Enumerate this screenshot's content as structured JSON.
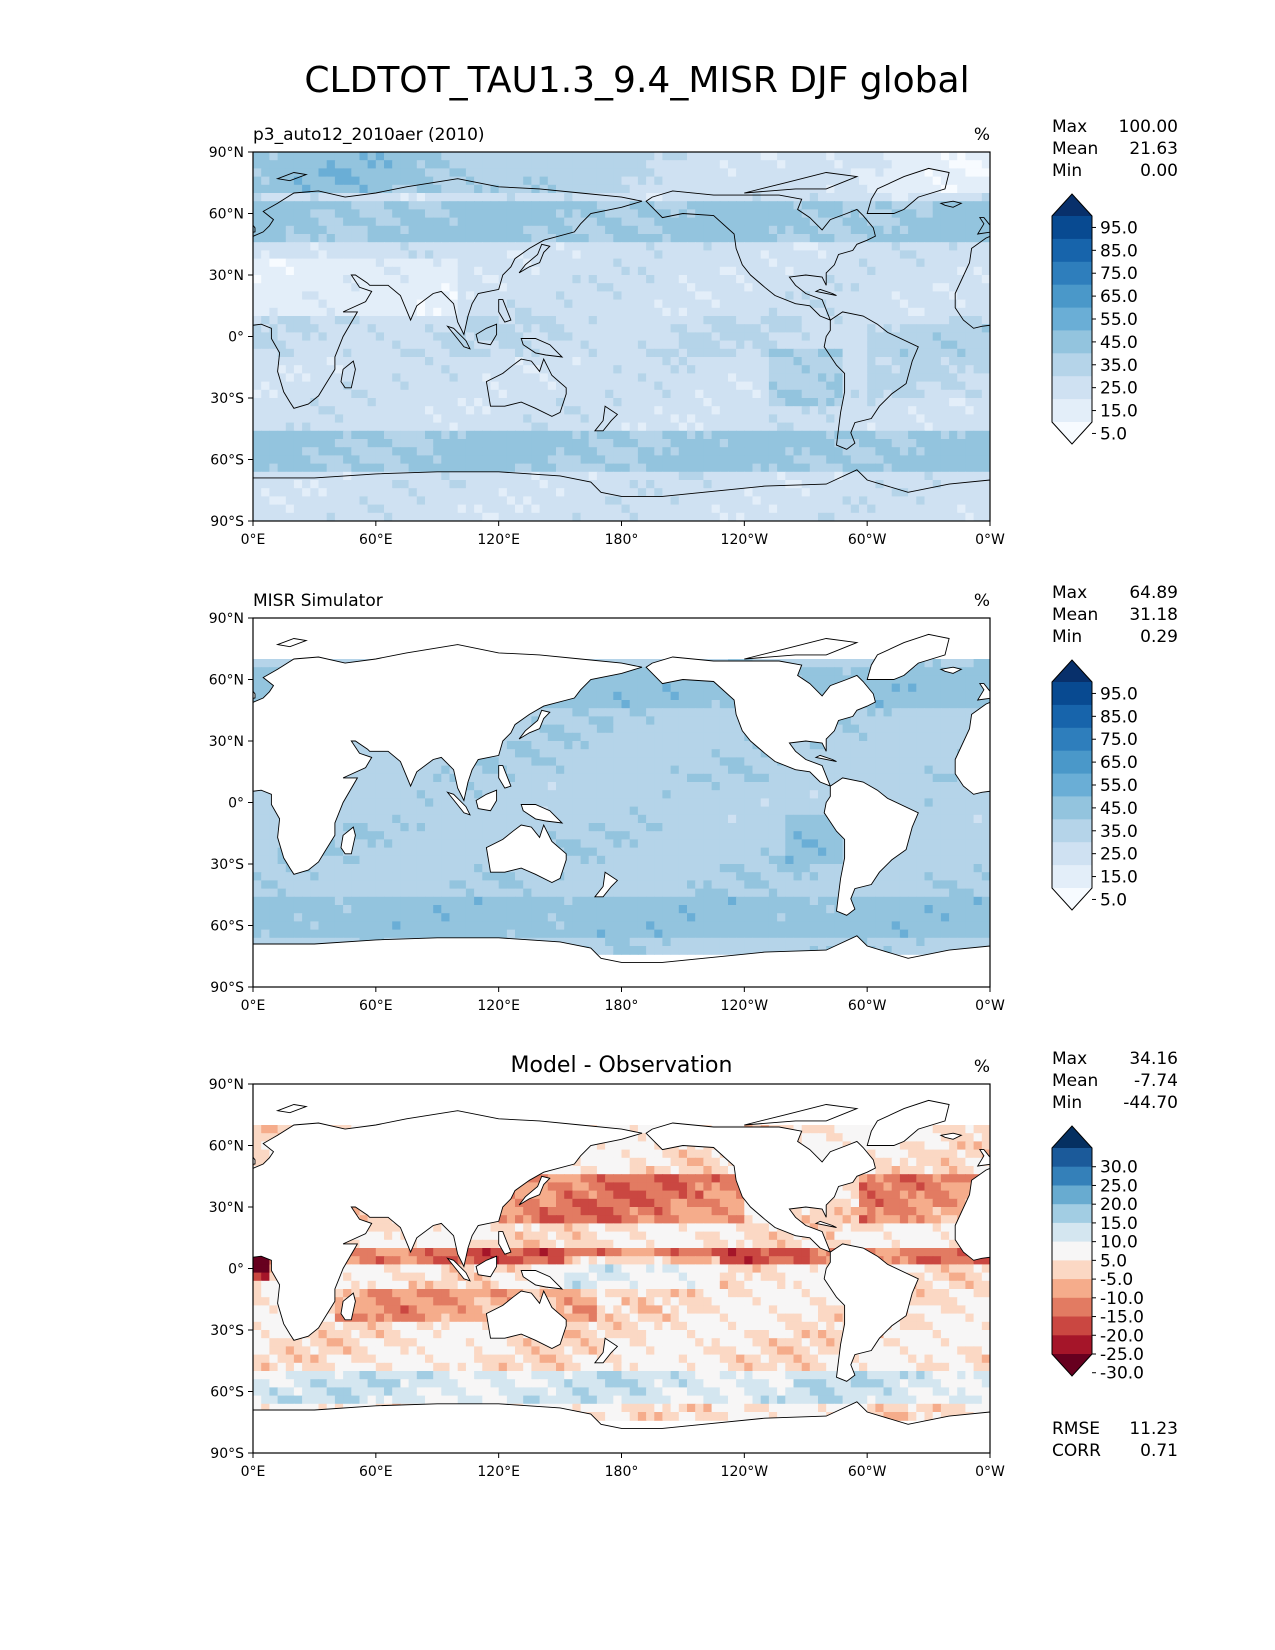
{
  "title": "CLDTOT_TAU1.3_9.4_MISR DJF global",
  "units_label": "%",
  "x_ticks": [
    "0°E",
    "60°E",
    "120°E",
    "180°",
    "120°W",
    "60°W",
    "0°W"
  ],
  "y_ticks": [
    "90°N",
    "60°N",
    "30°N",
    "0°",
    "30°S",
    "60°S",
    "90°S"
  ],
  "stat_labels": {
    "max": "Max",
    "mean": "Mean",
    "min": "Min",
    "rmse": "RMSE",
    "corr": "CORR"
  },
  "colors": {
    "blues": [
      "#f7fbff",
      "#e3eef9",
      "#cfe1f2",
      "#b5d4e9",
      "#93c4de",
      "#6aaed6",
      "#4a98c9",
      "#2e7ebc",
      "#1764ab",
      "#084a91",
      "#08306b"
    ],
    "diff": [
      "#67001f",
      "#a51529",
      "#ca4741",
      "#e27b62",
      "#f5ac8b",
      "#fbd8c4",
      "#f7f6f6",
      "#d4e6f0",
      "#a2cde3",
      "#68abd0",
      "#3480b9",
      "#1b5a9a",
      "#053061"
    ],
    "land": "#ffffff",
    "coast": "#000000"
  },
  "panels": [
    {
      "id": "test",
      "left_title": "p3_auto12_2010aer (2010)",
      "center_title": "",
      "stats": {
        "max": "100.00",
        "mean": "21.63",
        "min": "0.00"
      },
      "colorbar_labels": [
        "95.0",
        "85.0",
        "75.0",
        "65.0",
        "55.0",
        "45.0",
        "35.0",
        "25.0",
        "15.0",
        "5.0"
      ],
      "extra_stats": null
    },
    {
      "id": "reference",
      "left_title": "MISR Simulator",
      "center_title": "",
      "stats": {
        "max": "64.89",
        "mean": "31.18",
        "min": "0.29"
      },
      "colorbar_labels": [
        "95.0",
        "85.0",
        "75.0",
        "65.0",
        "55.0",
        "45.0",
        "35.0",
        "25.0",
        "15.0",
        "5.0"
      ],
      "extra_stats": null
    },
    {
      "id": "difference",
      "left_title": "",
      "center_title": "Model - Observation",
      "stats": {
        "max": "34.16",
        "mean": "-7.74",
        "min": "-44.70"
      },
      "colorbar_labels": [
        "30.0",
        "25.0",
        "20.0",
        "15.0",
        "10.0",
        "5.0",
        "-5.0",
        "-10.0",
        "-15.0",
        "-20.0",
        "-25.0",
        "-30.0"
      ],
      "extra_stats": {
        "rmse": "11.23",
        "corr": "0.71"
      }
    }
  ],
  "chart_data": [
    {
      "type": "heatmap",
      "title": "p3_auto12_2010aer (2010)",
      "units": "%",
      "xlim": [
        0,
        360
      ],
      "ylim": [
        -90,
        90
      ],
      "x_ticks": [
        "0°E",
        "60°E",
        "120°E",
        "180°",
        "120°W",
        "60°W",
        "0°W"
      ],
      "y_ticks": [
        "90°N",
        "60°N",
        "30°N",
        "0°",
        "30°S",
        "60°S",
        "90°S"
      ],
      "levels": [
        0,
        5,
        15,
        25,
        35,
        45,
        55,
        65,
        75,
        85,
        95,
        100
      ],
      "max": 100.0,
      "mean": 21.63,
      "min": 0.0
    },
    {
      "type": "heatmap",
      "title": "MISR Simulator",
      "units": "%",
      "xlim": [
        0,
        360
      ],
      "ylim": [
        -90,
        90
      ],
      "levels": [
        0,
        5,
        15,
        25,
        35,
        45,
        55,
        65,
        75,
        85,
        95,
        100
      ],
      "max": 64.89,
      "mean": 31.18,
      "min": 0.29
    },
    {
      "type": "heatmap",
      "title": "Model - Observation",
      "units": "%",
      "xlim": [
        0,
        360
      ],
      "ylim": [
        -90,
        90
      ],
      "levels": [
        -30,
        -25,
        -20,
        -15,
        -10,
        -5,
        5,
        10,
        15,
        20,
        25,
        30
      ],
      "max": 34.16,
      "mean": -7.74,
      "min": -44.7,
      "rmse": 11.23,
      "corr": 0.71
    }
  ]
}
